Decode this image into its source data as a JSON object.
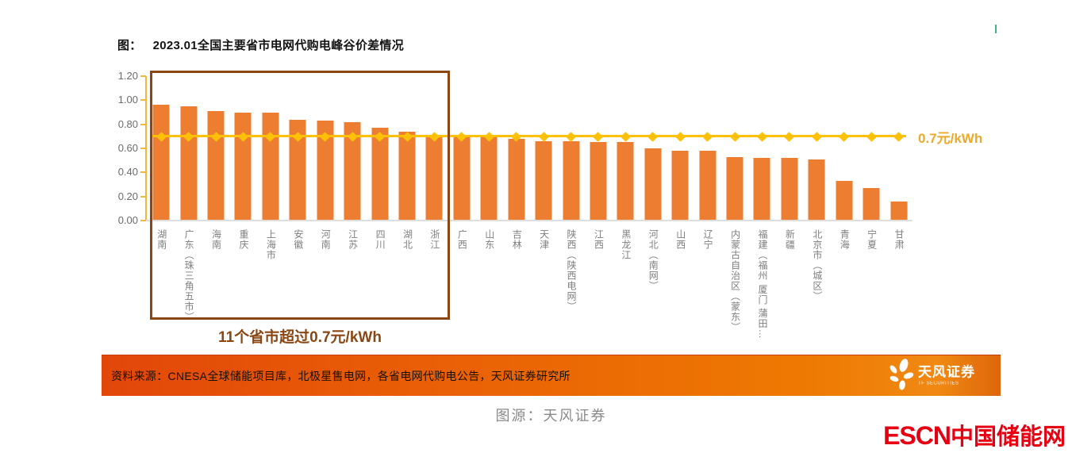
{
  "title": {
    "tag": "图：",
    "text": "2023.01全国主要省市电网代购电峰谷价差情况"
  },
  "chart_data": {
    "type": "bar",
    "title": "2023.01全国主要省市电网代购电峰谷价差情况",
    "unit": "元/kWh",
    "categories": [
      "湖南",
      "广东（珠三角五市）",
      "海南",
      "重庆",
      "上海市",
      "安徽",
      "河南",
      "江苏",
      "四川",
      "湖北",
      "浙江",
      "广西",
      "山东",
      "吉林",
      "天津",
      "陕西（陕西电网）",
      "江西",
      "黑龙江",
      "河北（南网）",
      "山西",
      "辽宁",
      "内蒙古自治区（蒙东）",
      "福建（福州 厦门 蒲田…",
      "新疆",
      "北京市（城区）",
      "青海",
      "宁夏",
      "甘肃"
    ],
    "values": [
      0.96,
      0.95,
      0.91,
      0.9,
      0.9,
      0.84,
      0.83,
      0.82,
      0.77,
      0.74,
      0.71,
      0.7,
      0.69,
      0.68,
      0.66,
      0.66,
      0.65,
      0.65,
      0.6,
      0.58,
      0.58,
      0.53,
      0.52,
      0.52,
      0.51,
      0.33,
      0.27,
      0.16
    ],
    "ylim": [
      0,
      1.2
    ],
    "yticks": [
      "1.20",
      "1.00",
      "0.80",
      "0.60",
      "0.40",
      "0.20",
      "0.00"
    ],
    "grid": false,
    "legend": null,
    "reference_line": {
      "value": 0.7,
      "label": "0.7元/kWh"
    }
  },
  "annotation": {
    "text": "11个省市超过0.7元/kWh",
    "highlighted_bars": 11
  },
  "footer": {
    "source": "资料来源：CNESA全球储能项目库，北极星售电网，各省电网代购电公告，天风证券研究所",
    "brand_name": "天风证券",
    "brand_sub": "TF SECURITIES"
  },
  "caption": "图源：天风证券",
  "watermark": {
    "en": "ESCN",
    "cn": "中国储能网"
  },
  "colors": {
    "bar": "#ED7D31",
    "reference_line": "#FFC008",
    "highlight_box": "#8A4613",
    "footer_left": "#E2470A",
    "footer_right": "#EE7902",
    "escn_red": "#E60012"
  }
}
